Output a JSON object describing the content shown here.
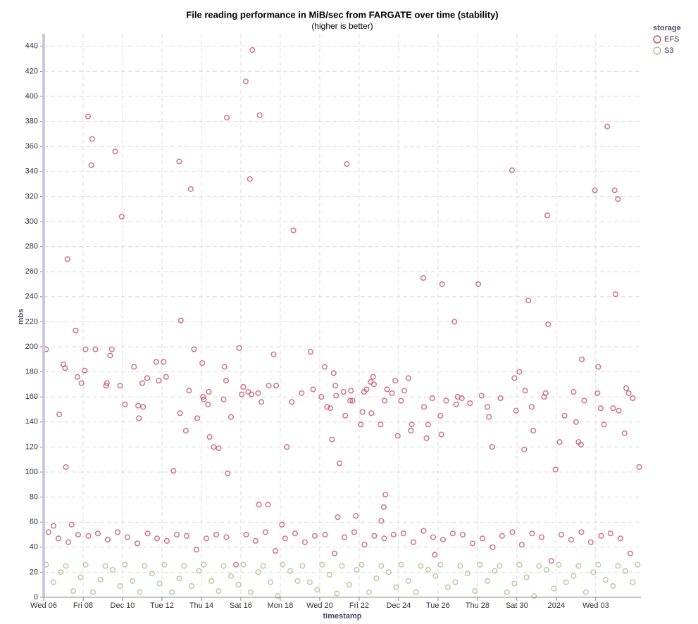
{
  "chart_data": {
    "type": "scatter",
    "title": "File reading performance in MiB/sec from FARGATE over time (stability)",
    "subtitle": "(higher is better)",
    "x_label": "timestamp",
    "y_label": "mbs",
    "legend_title": "storage",
    "legend": "top-right",
    "grid": true,
    "ylim": [
      0,
      450
    ],
    "yticks": [
      0,
      20,
      40,
      60,
      80,
      100,
      120,
      140,
      160,
      180,
      200,
      220,
      240,
      260,
      280,
      300,
      320,
      340,
      360,
      380,
      400,
      420,
      440
    ],
    "xlim": [
      "2023-12-06T00:00",
      "2024-01-05T07:00"
    ],
    "xticks": [
      {
        "value": "2023-12-06T00:00",
        "label": "Wed 06"
      },
      {
        "value": "2023-12-08T00:00",
        "label": "Fri 08"
      },
      {
        "value": "2023-12-10T00:00",
        "label": "Dec 10"
      },
      {
        "value": "2023-12-12T00:00",
        "label": "Tue 12"
      },
      {
        "value": "2023-12-14T00:00",
        "label": "Thu 14"
      },
      {
        "value": "2023-12-16T00:00",
        "label": "Sat 16"
      },
      {
        "value": "2023-12-18T00:00",
        "label": "Mon 18"
      },
      {
        "value": "2023-12-20T00:00",
        "label": "Wed 20"
      },
      {
        "value": "2023-12-22T00:00",
        "label": "Fri 22"
      },
      {
        "value": "2023-12-24T00:00",
        "label": "Dec 24"
      },
      {
        "value": "2023-12-26T00:00",
        "label": "Tue 26"
      },
      {
        "value": "2023-12-28T00:00",
        "label": "Thu 28"
      },
      {
        "value": "2023-12-30T00:00",
        "label": "Sat 30"
      },
      {
        "value": "2024-01-01T00:00",
        "label": "2024"
      },
      {
        "value": "2024-01-03T00:00",
        "label": "Wed 03"
      }
    ],
    "series": [
      {
        "name": "EFS",
        "color": "#c55a6a",
        "x": [
          "2023-12-06T03:00",
          "2023-12-06T19:00",
          "2023-12-07T00:00",
          "2023-12-07T02:00",
          "2023-12-07T03:00",
          "2023-12-07T05:00",
          "2023-12-07T15:00",
          "2023-12-07T17:00",
          "2023-12-07T22:00",
          "2023-12-08T02:00",
          "2023-12-08T03:00",
          "2023-12-08T06:00",
          "2023-12-08T10:00",
          "2023-12-08T11:00",
          "2023-12-08T15:00",
          "2023-12-09T04:00",
          "2023-12-09T05:00",
          "2023-12-09T09:00",
          "2023-12-09T11:00",
          "2023-12-09T15:00",
          "2023-12-09T21:00",
          "2023-12-09T23:00",
          "2023-12-10T03:00",
          "2023-12-10T14:00",
          "2023-12-10T19:00",
          "2023-12-10T20:00",
          "2023-12-11T00:00",
          "2023-12-11T01:00",
          "2023-12-11T06:00",
          "2023-12-11T17:00",
          "2023-12-11T20:00",
          "2023-12-12T02:00",
          "2023-12-12T05:00",
          "2023-12-12T14:00",
          "2023-12-12T21:00",
          "2023-12-12T22:00",
          "2023-12-12T23:00",
          "2023-12-13T05:00",
          "2023-12-13T09:00",
          "2023-12-13T11:00",
          "2023-12-13T15:00",
          "2023-12-13T19:00",
          "2023-12-14T01:00",
          "2023-12-14T02:00",
          "2023-12-14T03:00",
          "2023-12-14T08:00",
          "2023-12-14T09:00",
          "2023-12-14T10:00",
          "2023-12-14T15:00",
          "2023-12-14T21:00",
          "2023-12-15T03:00",
          "2023-12-15T04:00",
          "2023-12-15T06:00",
          "2023-12-15T07:00",
          "2023-12-15T08:00",
          "2023-12-15T12:00",
          "2023-12-15T22:00",
          "2023-12-16T01:00",
          "2023-12-16T03:00",
          "2023-12-16T06:00",
          "2023-12-16T09:00",
          "2023-12-16T11:00",
          "2023-12-16T13:00",
          "2023-12-16T14:00",
          "2023-12-16T21:00",
          "2023-12-16T22:00",
          "2023-12-16T23:00",
          "2023-12-17T01:00",
          "2023-12-17T09:00",
          "2023-12-17T10:00",
          "2023-12-17T16:00",
          "2023-12-17T19:00",
          "2023-12-18T08:00",
          "2023-12-18T14:00",
          "2023-12-18T16:00",
          "2023-12-19T02:00",
          "2023-12-19T13:00",
          "2023-12-19T16:00",
          "2023-12-20T02:00",
          "2023-12-20T06:00",
          "2023-12-20T09:00",
          "2023-12-20T13:00",
          "2023-12-20T15:00",
          "2023-12-20T17:00",
          "2023-12-20T19:00",
          "2023-12-20T20:00",
          "2023-12-21T00:00",
          "2023-12-21T05:00",
          "2023-12-21T07:00",
          "2023-12-21T09:00",
          "2023-12-21T13:00",
          "2023-12-21T14:00",
          "2023-12-21T16:00",
          "2023-12-22T02:00",
          "2023-12-22T04:00",
          "2023-12-22T06:00",
          "2023-12-22T09:00",
          "2023-12-22T14:00",
          "2023-12-22T15:00",
          "2023-12-22T17:00",
          "2023-12-22T18:00",
          "2023-12-23T02:00",
          "2023-12-23T06:00",
          "2023-12-23T07:00",
          "2023-12-23T08:00",
          "2023-12-23T10:00",
          "2023-12-23T16:00",
          "2023-12-23T20:00",
          "2023-12-23T23:00",
          "2023-12-24T03:00",
          "2023-12-24T07:00",
          "2023-12-24T12:00",
          "2023-12-24T15:00",
          "2023-12-24T16:00",
          "2023-12-25T06:00",
          "2023-12-25T07:00",
          "2023-12-25T10:00",
          "2023-12-25T12:00",
          "2023-12-25T17:00",
          "2023-12-26T03:00",
          "2023-12-26T04:00",
          "2023-12-26T05:00",
          "2023-12-26T10:00",
          "2023-12-26T20:00",
          "2023-12-26T22:00",
          "2023-12-27T00:00",
          "2023-12-27T05:00",
          "2023-12-27T15:00",
          "2023-12-28T01:00",
          "2023-12-28T05:00",
          "2023-12-28T12:00",
          "2023-12-28T14:00",
          "2023-12-28T18:00",
          "2023-12-29T04:00",
          "2023-12-29T18:00",
          "2023-12-29T21:00",
          "2023-12-29T23:00",
          "2023-12-30T03:00",
          "2023-12-30T09:00",
          "2023-12-30T10:00",
          "2023-12-30T14:00",
          "2023-12-30T18:00",
          "2023-12-30T20:00",
          "2023-12-31T09:00",
          "2023-12-31T11:00",
          "2023-12-31T13:00",
          "2023-12-31T14:00",
          "2023-12-31T23:00",
          "2024-01-01T04:00",
          "2024-01-01T10:00",
          "2024-01-01T21:00",
          "2024-01-02T00:00",
          "2024-01-02T03:00",
          "2024-01-02T06:00",
          "2024-01-02T07:00",
          "2024-01-02T10:00",
          "2024-01-02T23:00",
          "2024-01-03T02:00",
          "2024-01-03T03:00",
          "2024-01-03T06:00",
          "2024-01-03T10:00",
          "2024-01-03T14:00",
          "2024-01-03T21:00",
          "2024-01-03T23:00",
          "2024-01-04T00:00",
          "2024-01-04T03:00",
          "2024-01-04T04:00",
          "2024-01-04T11:00",
          "2024-01-04T13:00",
          "2024-01-04T16:00",
          "2024-01-04T21:00",
          "2024-01-05T05:00",
          "2023-12-06T06:00",
          "2023-12-06T18:00",
          "2023-12-07T06:00",
          "2023-12-07T18:00",
          "2023-12-08T06:30",
          "2023-12-08T18:00",
          "2023-12-09T06:00",
          "2023-12-09T18:00",
          "2023-12-10T06:00",
          "2023-12-10T18:00",
          "2023-12-11T06:30",
          "2023-12-11T18:00",
          "2023-12-12T06:00",
          "2023-12-12T18:00",
          "2023-12-13T06:00",
          "2023-12-13T18:00",
          "2023-12-14T06:00",
          "2023-12-14T18:00",
          "2023-12-15T06:30",
          "2023-12-15T18:00",
          "2023-12-16T06:30",
          "2023-12-16T18:00",
          "2023-12-17T06:00",
          "2023-12-17T18:00",
          "2023-12-18T06:00",
          "2023-12-18T18:00",
          "2023-12-19T06:00",
          "2023-12-19T18:00",
          "2023-12-20T06:30",
          "2023-12-20T18:00",
          "2023-12-21T06:00",
          "2023-12-21T18:00",
          "2023-12-22T06:30",
          "2023-12-22T18:30",
          "2023-12-23T06:30",
          "2023-12-23T18:00",
          "2023-12-24T06:00",
          "2023-12-24T18:00",
          "2023-12-25T06:30",
          "2023-12-25T18:00",
          "2023-12-26T06:00",
          "2023-12-26T18:00",
          "2023-12-27T06:00",
          "2023-12-27T18:00",
          "2023-12-28T06:00",
          "2023-12-28T18:30",
          "2023-12-29T06:00",
          "2023-12-29T18:30",
          "2023-12-30T06:00",
          "2023-12-30T18:30",
          "2023-12-31T06:00",
          "2023-12-31T18:00",
          "2024-01-01T06:00",
          "2024-01-01T18:00",
          "2024-01-02T06:30",
          "2024-01-02T18:00",
          "2024-01-03T06:30",
          "2024-01-03T18:00",
          "2024-01-04T06:00",
          "2024-01-04T18:00",
          "2023-12-06T12:00",
          "2023-12-07T10:00",
          "2023-12-18T02:00",
          "2023-12-20T22:00",
          "2023-12-21T20:00",
          "2023-12-23T03:00",
          "2023-12-25T20:00"
        ],
        "values": [
          198,
          146,
          186,
          183,
          104,
          270,
          213,
          176,
          171,
          181,
          198,
          384,
          345,
          366,
          198,
          169,
          171,
          193,
          198,
          356,
          169,
          304,
          154,
          184,
          153,
          143,
          171,
          152,
          175,
          188,
          173,
          188,
          176,
          101,
          348,
          147,
          221,
          133,
          165,
          326,
          198,
          143,
          187,
          160,
          158,
          154,
          164,
          128,
          120,
          119,
          158,
          184,
          173,
          383,
          99,
          144,
          199,
          162,
          168,
          412,
          164,
          334,
          162,
          437,
          163,
          74,
          385,
          156,
          74,
          169,
          194,
          169,
          120,
          156,
          293,
          163,
          196,
          166,
          160,
          184,
          152,
          151,
          126,
          179,
          169,
          161,
          107,
          164,
          145,
          346,
          157,
          165,
          157,
          138,
          148,
          164,
          166,
          172,
          147,
          176,
          170,
          138,
          72,
          157,
          82,
          166,
          163,
          173,
          129,
          157,
          165,
          175,
          133,
          138,
          255,
          152,
          127,
          138,
          159,
          145,
          130,
          250,
          157,
          220,
          154,
          160,
          159,
          155,
          250,
          161,
          152,
          144,
          120,
          159,
          341,
          175,
          149,
          180,
          118,
          165,
          237,
          152,
          133,
          160,
          163,
          305,
          218,
          102,
          124,
          145,
          164,
          140,
          124,
          122,
          190,
          157,
          325,
          163,
          184,
          151,
          138,
          376,
          151,
          325,
          242,
          318,
          149,
          131,
          167,
          163,
          159,
          104,
          52,
          47,
          44,
          50,
          49,
          51,
          46,
          52,
          48,
          43,
          51,
          47,
          45,
          50,
          49,
          38,
          47,
          50,
          48,
          26,
          50,
          45,
          52,
          37,
          47,
          51,
          44,
          49,
          50,
          35,
          48,
          52,
          42,
          49,
          47,
          50,
          51,
          44,
          53,
          48,
          46,
          51,
          50,
          43,
          47,
          40,
          49,
          52,
          42,
          51,
          48,
          29,
          50,
          46,
          52,
          44,
          49,
          51,
          47,
          35,
          57,
          58,
          58,
          64,
          65,
          61,
          34
        ]
      },
      {
        "name": "S3",
        "color": "#a3c78a",
        "x": [
          "2023-12-06T03:00",
          "2023-12-06T12:00",
          "2023-12-06T21:00",
          "2023-12-07T03:00",
          "2023-12-07T12:00",
          "2023-12-07T21:00",
          "2023-12-08T03:00",
          "2023-12-08T12:00",
          "2023-12-08T21:00",
          "2023-12-09T03:00",
          "2023-12-09T12:00",
          "2023-12-09T21:00",
          "2023-12-10T03:00",
          "2023-12-10T12:00",
          "2023-12-10T21:00",
          "2023-12-11T03:00",
          "2023-12-11T12:00",
          "2023-12-11T21:00",
          "2023-12-12T03:00",
          "2023-12-12T12:00",
          "2023-12-12T21:00",
          "2023-12-13T03:00",
          "2023-12-13T12:00",
          "2023-12-13T21:00",
          "2023-12-14T03:00",
          "2023-12-14T12:00",
          "2023-12-14T21:00",
          "2023-12-15T03:00",
          "2023-12-15T12:00",
          "2023-12-15T21:00",
          "2023-12-16T03:00",
          "2023-12-16T12:00",
          "2023-12-16T21:00",
          "2023-12-17T03:00",
          "2023-12-17T12:00",
          "2023-12-17T21:00",
          "2023-12-18T03:00",
          "2023-12-18T12:00",
          "2023-12-18T21:00",
          "2023-12-19T03:00",
          "2023-12-19T12:00",
          "2023-12-19T21:00",
          "2023-12-20T03:00",
          "2023-12-20T12:00",
          "2023-12-20T21:00",
          "2023-12-21T03:00",
          "2023-12-21T12:00",
          "2023-12-21T21:00",
          "2023-12-22T03:00",
          "2023-12-22T12:00",
          "2023-12-22T21:00",
          "2023-12-23T03:00",
          "2023-12-23T12:00",
          "2023-12-23T21:00",
          "2023-12-24T03:00",
          "2023-12-24T12:00",
          "2023-12-24T21:00",
          "2023-12-25T03:00",
          "2023-12-25T12:00",
          "2023-12-25T21:00",
          "2023-12-26T03:00",
          "2023-12-26T12:00",
          "2023-12-26T21:00",
          "2023-12-27T03:00",
          "2023-12-27T12:00",
          "2023-12-27T21:00",
          "2023-12-28T03:00",
          "2023-12-28T12:00",
          "2023-12-28T21:00",
          "2023-12-29T03:00",
          "2023-12-29T12:00",
          "2023-12-29T21:00",
          "2023-12-30T03:00",
          "2023-12-30T12:00",
          "2023-12-30T21:00",
          "2023-12-31T03:00",
          "2023-12-31T12:00",
          "2023-12-31T21:00",
          "2024-01-01T03:00",
          "2024-01-01T12:00",
          "2024-01-01T21:00",
          "2024-01-02T03:00",
          "2024-01-02T12:00",
          "2024-01-02T21:00",
          "2024-01-03T03:00",
          "2024-01-03T12:00",
          "2024-01-03T21:00",
          "2024-01-04T03:00",
          "2024-01-04T12:00",
          "2024-01-04T21:00",
          "2024-01-05T03:00"
        ],
        "values": [
          26,
          12,
          20,
          25,
          5,
          16,
          26,
          4,
          14,
          25,
          22,
          9,
          26,
          13,
          4,
          25,
          19,
          11,
          26,
          4,
          15,
          25,
          9,
          21,
          26,
          13,
          5,
          25,
          17,
          10,
          26,
          4,
          20,
          25,
          12,
          1,
          26,
          21,
          13,
          25,
          12,
          6,
          26,
          18,
          3,
          25,
          10,
          22,
          26,
          4,
          15,
          25,
          20,
          8,
          26,
          13,
          4,
          25,
          22,
          17,
          26,
          8,
          12,
          25,
          19,
          5,
          26,
          13,
          21,
          25,
          4,
          11,
          26,
          16,
          1,
          25,
          22,
          7,
          26,
          12,
          17,
          25,
          4,
          20,
          26,
          14,
          9,
          25,
          21,
          12,
          26
        ]
      }
    ]
  }
}
